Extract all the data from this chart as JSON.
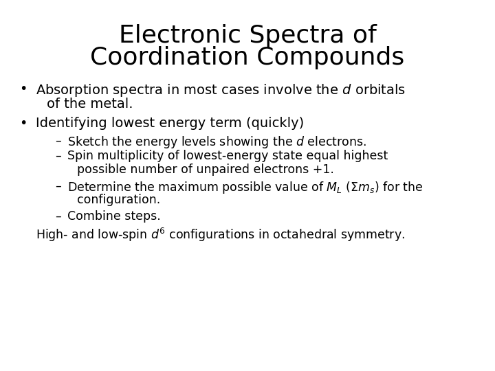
{
  "title_line1": "Electronic Spectra of",
  "title_line2": "Coordination Compounds",
  "background_color": "#ffffff",
  "text_color": "#000000",
  "title_fontsize": 26,
  "body_fontsize": 14,
  "sub_fontsize": 12.5,
  "font_family": "DejaVu Sans",
  "bullet1_line1": "Absorption spectra in most cases involve the $d$ orbitals",
  "bullet1_line2": "of the metal.",
  "bullet2": "Identifying lowest energy term (quickly)",
  "sub1": "Sketch the energy levels showing the $d$ electrons.",
  "sub2_line1": "Spin multiplicity of lowest-energy state equal highest",
  "sub2_line2": "possible number of unpaired electrons +1.",
  "sub3_line1": "Determine the maximum possible value of $M_L$ ($\\Sigma m_s$) for the",
  "sub3_line2": "configuration.",
  "sub4": "Combine steps.",
  "last": "High- and low-spin $d^6$ configurations in octahedral symmetry."
}
